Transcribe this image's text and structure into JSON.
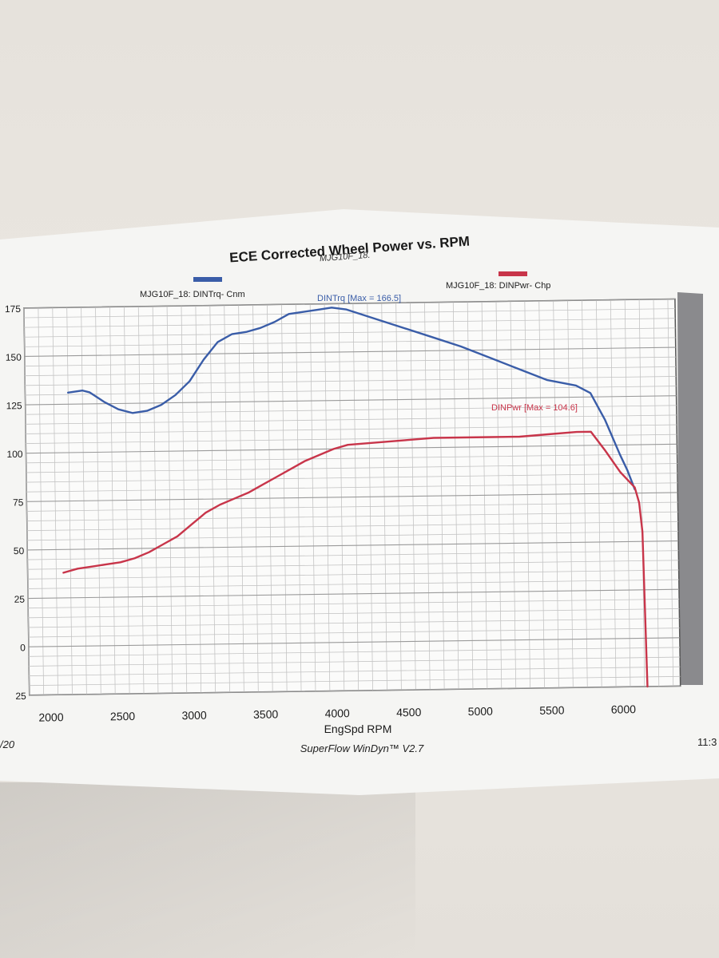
{
  "chart_data": {
    "type": "line",
    "title": "ECE Corrected Wheel Power vs. RPM",
    "subtitle": "MJG10F_18.",
    "xlabel": "EngSpd  RPM",
    "ylabel": "",
    "xlim": [
      1850,
      6400
    ],
    "ylim": [
      -25,
      175
    ],
    "x_ticks": [
      2000,
      2500,
      3000,
      3500,
      4000,
      4500,
      5000,
      5500,
      6000
    ],
    "y_ticks": [
      175,
      150,
      125,
      100,
      75,
      50,
      25,
      0,
      -25
    ],
    "x_tick_labels": [
      "2000",
      "2500",
      "3000",
      "3500",
      "4000",
      "4500",
      "5000",
      "5500",
      "6000"
    ],
    "y_tick_labels": [
      "175",
      "150",
      "125",
      "100",
      "75",
      "50",
      "25",
      "0",
      "25"
    ],
    "grid": true,
    "legend_position": "top",
    "series": [
      {
        "name": "MJG10F_18: DINTrq- Cnm",
        "color": "#3a5da8",
        "annotation": "DINTrq [Max = 166.5]",
        "x": [
          2150,
          2250,
          2300,
          2400,
          2500,
          2600,
          2700,
          2800,
          2900,
          3000,
          3100,
          3200,
          3300,
          3400,
          3500,
          3600,
          3700,
          3800,
          3900,
          4000,
          4100,
          4300,
          4500,
          4700,
          4900,
          5100,
          5300,
          5500,
          5700,
          5800,
          5900,
          6000,
          6050,
          6100
        ],
        "values": [
          131,
          132,
          131,
          126,
          122,
          120,
          121,
          124,
          129,
          136,
          147,
          156,
          160,
          161,
          163,
          166,
          170,
          171,
          172,
          173,
          172,
          167,
          162,
          157,
          152,
          146,
          140,
          134,
          131,
          127,
          113,
          95,
          87,
          77
        ]
      },
      {
        "name": "MJG10F_18: DINPwr- Chp",
        "color": "#c8354a",
        "annotation": "DINPwr [Max = 104.6]",
        "x": [
          2100,
          2200,
          2300,
          2400,
          2500,
          2600,
          2700,
          2800,
          2900,
          3000,
          3100,
          3200,
          3300,
          3400,
          3500,
          3600,
          3700,
          3800,
          3900,
          4000,
          4100,
          4300,
          4500,
          4700,
          4900,
          5100,
          5300,
          5500,
          5700,
          5800,
          5900,
          6000,
          6050,
          6100,
          6130,
          6150,
          6170
        ],
        "values": [
          38,
          40,
          41,
          42,
          43,
          45,
          48,
          52,
          56,
          62,
          68,
          72,
          75,
          78,
          82,
          86,
          90,
          94,
          97,
          100,
          102,
          103,
          104,
          105,
          105,
          105,
          105,
          106,
          107,
          107,
          97,
          86,
          82,
          78,
          70,
          55,
          -25
        ]
      }
    ]
  },
  "footer": {
    "left_text": "/20",
    "center_text": "SuperFlow WinDyn™ V2.7",
    "right_text": "11:3"
  }
}
